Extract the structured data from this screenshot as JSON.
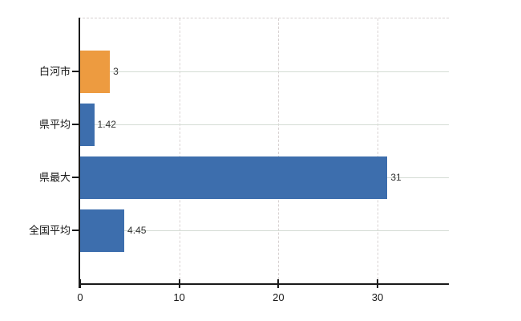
{
  "chart_data": {
    "type": "bar",
    "orientation": "horizontal",
    "title": "",
    "xlabel": "",
    "ylabel": "",
    "categories": [
      "白河市",
      "県平均",
      "県最大",
      "全国平均"
    ],
    "values": [
      3,
      1.42,
      31,
      4.45
    ],
    "value_labels": [
      "3",
      "1.42",
      "31",
      "4.45"
    ],
    "bar_colors": [
      "#ed9b40",
      "#3d6ead",
      "#3d6ead",
      "#3d6ead"
    ],
    "x_tick_labels": [
      "0",
      "10",
      "20",
      "30"
    ],
    "x_tick_values": [
      0,
      10,
      20,
      30
    ],
    "xlim": [
      0,
      37.2
    ],
    "grid": {
      "vertical_style": "dashed",
      "horizontal_style": "solid"
    },
    "legend": null,
    "colors": {
      "background": "#ffffff",
      "axis": "#1a1a1a",
      "grid_horizontal": "#d4dcd4",
      "grid_vertical": "#d9d3d3",
      "top_border": "#d6d0d0",
      "category_text": "#1a1a1a",
      "tick_text": "#1a1a1a",
      "value_text": "#333333",
      "accent_orange": "#ed9b40",
      "accent_blue": "#3d6ead"
    }
  }
}
